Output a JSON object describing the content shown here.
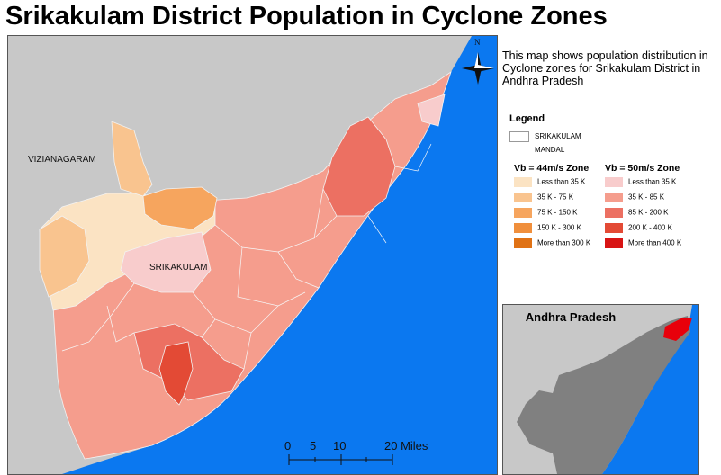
{
  "title": "Srikakulam District Population in Cyclone Zones",
  "description": "This map shows population distribution in Cyclone zones for Srikakulam District in Andhra Pradesh",
  "map_labels": {
    "neighbor": "VIZIANAGARAM",
    "district": "SRIKAKULAM",
    "north": "N"
  },
  "legend": {
    "title": "Legend",
    "district_item": "SRIKAKULAM",
    "mandal_item": "MANDAL",
    "zone_44": {
      "title": "Vb = 44m/s Zone",
      "items": [
        {
          "label": "Less than 35 K",
          "color": "#fbe3c3"
        },
        {
          "label": "35 K - 75 K",
          "color": "#f9c48f"
        },
        {
          "label": "75 K - 150 K",
          "color": "#f6a55e"
        },
        {
          "label": "150 K - 300 K",
          "color": "#f08f3c"
        },
        {
          "label": "More than 300 K",
          "color": "#e07215"
        }
      ]
    },
    "zone_50": {
      "title": "Vb = 50m/s Zone",
      "items": [
        {
          "label": "Less than 35 K",
          "color": "#f8cccc"
        },
        {
          "label": "35 K - 85 K",
          "color": "#f59d8d"
        },
        {
          "label": "85 K - 200 K",
          "color": "#ec7062"
        },
        {
          "label": "200 K - 400 K",
          "color": "#e34a35"
        },
        {
          "label": "More than 400 K",
          "color": "#d81414"
        }
      ]
    }
  },
  "scale_bar": {
    "ticks": [
      "0",
      "5",
      "10",
      "20 Miles"
    ]
  },
  "inset": {
    "title": "Andhra Pradesh"
  },
  "colors": {
    "sea": "#0b78f0",
    "land": "#c8c8c8",
    "state": "#808080",
    "highlight": "#e8000b"
  }
}
